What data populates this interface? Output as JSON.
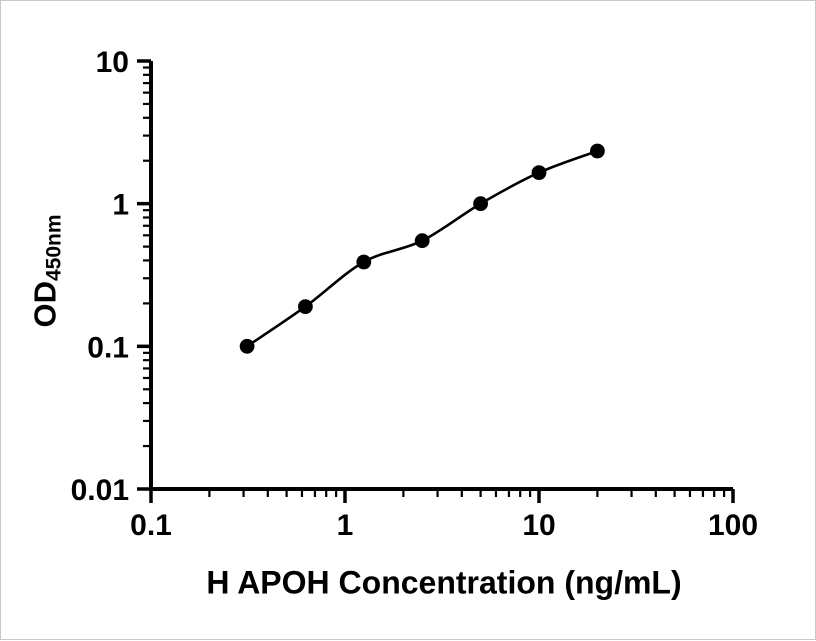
{
  "figure": {
    "background_color": "#ffffff",
    "border_color": "#c9c9c9"
  },
  "chart_data": {
    "type": "scatter",
    "xlabel": "H APOH Concentration (ng/mL)",
    "ylabel": "OD",
    "ylabel_subscript": "450nm",
    "x_scale": "log",
    "y_scale": "log",
    "xlim": [
      0.1,
      100
    ],
    "ylim": [
      0.01,
      10
    ],
    "x_ticks": {
      "values": [
        0.1,
        1,
        10,
        100
      ],
      "labels": [
        "0.1",
        "1",
        "10",
        "100"
      ]
    },
    "y_ticks": {
      "values": [
        0.01,
        0.1,
        1,
        10
      ],
      "labels": [
        "0.01",
        "0.1",
        "1",
        "10"
      ]
    },
    "minor_ticks": true,
    "grid": false,
    "legend": false,
    "series": [
      {
        "marker": "filled-circle",
        "line": "smooth",
        "color": "#000000",
        "x": [
          0.313,
          0.625,
          1.25,
          2.5,
          5,
          10,
          20
        ],
        "y": [
          0.1,
          0.19,
          0.39,
          0.55,
          1.0,
          1.65,
          2.34
        ]
      }
    ]
  }
}
